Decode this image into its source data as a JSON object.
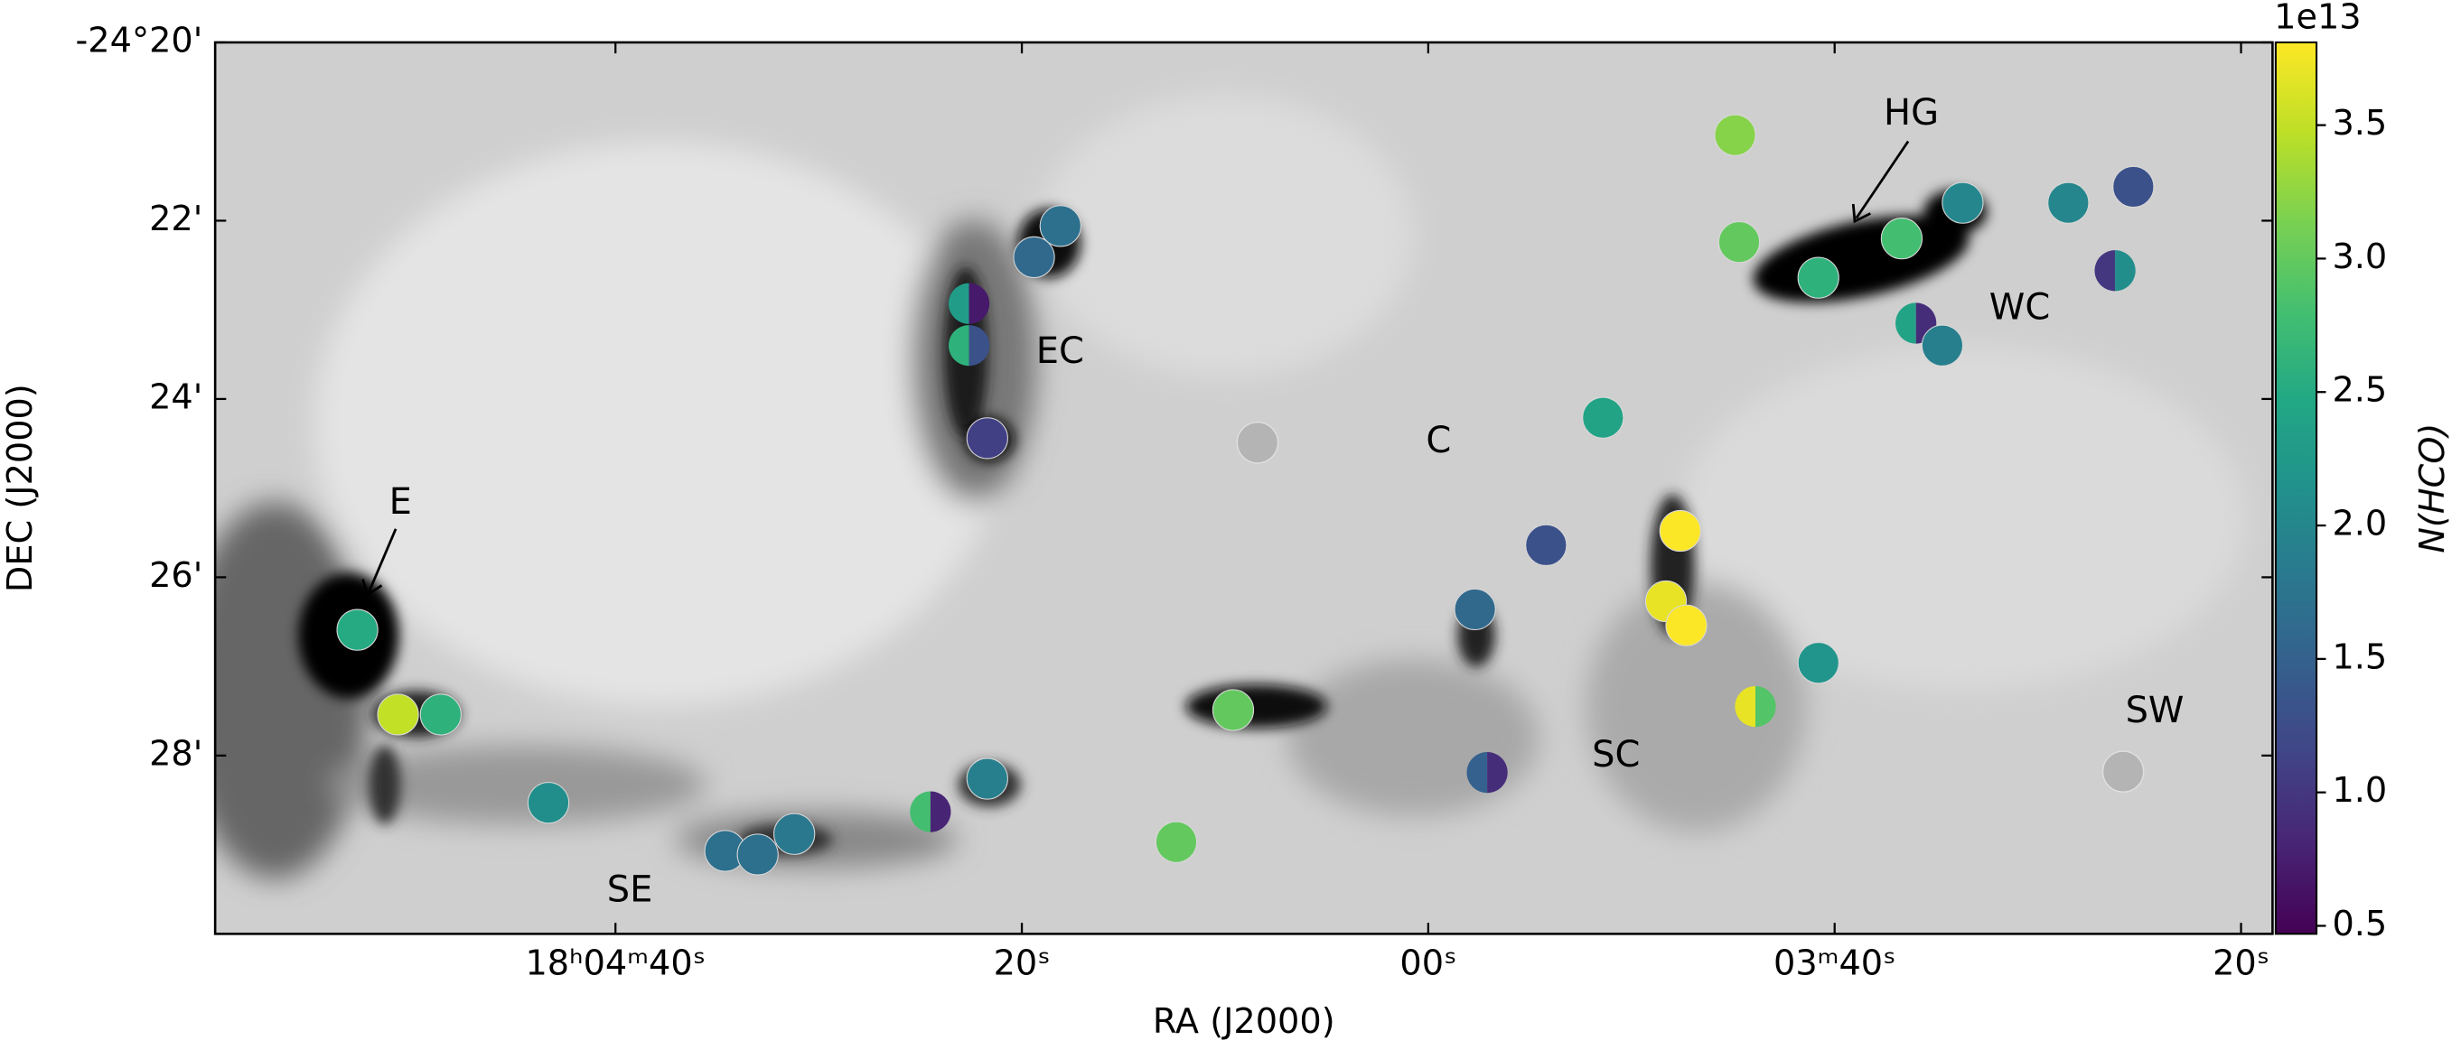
{
  "chart_data": {
    "type": "scatter",
    "xlabel": "RA (J2000)",
    "ylabel": "DEC (J2000)",
    "x": [
      292.7,
      290.7,
      288.6,
      283.3,
      274.6,
      273.0,
      271.2,
      264.5,
      261.7,
      252.4,
      249.6,
      262.6,
      262.6,
      261.7,
      259.4,
      258.1,
      248.4,
      237.7,
      237.1,
      234.2,
      231.4,
      227.6,
      228.3,
      227.3,
      223.9,
      224.9,
      224.7,
      220.8,
      220.8,
      216.7,
      216.0,
      214.7,
      213.7,
      208.5,
      206.2,
      205.3,
      205.8
    ],
    "y": [
      26.59,
      27.54,
      27.54,
      28.53,
      29.07,
      29.11,
      28.88,
      28.63,
      28.26,
      28.97,
      27.49,
      22.93,
      23.4,
      24.44,
      22.41,
      22.06,
      24.49,
      26.36,
      28.19,
      25.64,
      24.21,
      25.48,
      26.27,
      26.54,
      27.45,
      21.04,
      22.24,
      22.64,
      26.96,
      22.2,
      23.15,
      23.4,
      21.8,
      21.8,
      22.56,
      21.62,
      28.18
    ],
    "values": [
      2.5,
      3.5,
      2.6,
      2.1,
      1.7,
      1.7,
      1.8,
      2.8,
      1.9,
      3.0,
      3.0,
      2.3,
      2.6,
      1.1,
      1.6,
      1.7,
      null,
      1.6,
      1.5,
      1.3,
      2.4,
      3.8,
      3.7,
      3.8,
      3.7,
      3.2,
      3.0,
      2.6,
      2.2,
      2.8,
      2.4,
      1.9,
      2.0,
      2.0,
      1.0,
      1.3,
      null
    ],
    "values2": [
      null,
      null,
      null,
      null,
      null,
      null,
      null,
      0.8,
      null,
      null,
      null,
      0.7,
      1.3,
      null,
      null,
      null,
      null,
      null,
      0.9,
      null,
      null,
      null,
      null,
      null,
      2.9,
      null,
      null,
      null,
      null,
      null,
      0.9,
      null,
      null,
      null,
      2.1,
      null,
      null
    ],
    "xlim": [
      299.7,
      198.45
    ],
    "ylim": [
      30,
      20
    ],
    "xticks": [
      {
        "value": 280,
        "label": "18ʰ04ᵐ40ˢ"
      },
      {
        "value": 260,
        "label": "20ˢ"
      },
      {
        "value": 240,
        "label": "00ˢ"
      },
      {
        "value": 220,
        "label": "03ᵐ40ˢ"
      },
      {
        "value": 200,
        "label": "20ˢ"
      }
    ],
    "yticks": [
      {
        "value": 20,
        "label": "-24°20'"
      },
      {
        "value": 22,
        "label": "22'"
      },
      {
        "value": 24,
        "label": "24'"
      },
      {
        "value": 26,
        "label": "26'"
      },
      {
        "value": 28,
        "label": "28'"
      }
    ],
    "colormap": "viridis",
    "colorbar": {
      "label": "N(HCO)",
      "offset_label": "1e13",
      "lim": [
        0.47,
        3.81
      ],
      "ticks": [
        0.5,
        {
          "value": 1,
          "label": "1.0"
        },
        1.5,
        {
          "value": 2,
          "label": "2.0"
        },
        2.5,
        {
          "value": 3,
          "label": "3.0"
        },
        3.5
      ]
    },
    "annotations": [
      "HG",
      "WC",
      "EC",
      "C",
      "E",
      "SE",
      "SC",
      "SW"
    ]
  }
}
